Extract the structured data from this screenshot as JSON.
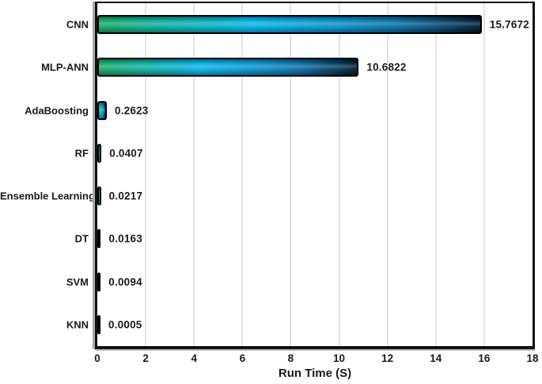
{
  "chart_data": {
    "type": "bar",
    "orientation": "horizontal",
    "title": "",
    "xlabel": "Run Time (S)",
    "ylabel": "",
    "categories": [
      "CNN",
      "MLP-ANN",
      "AdaBoosting",
      "RF",
      "Ensemble Learning",
      "DT",
      "SVM",
      "KNN"
    ],
    "values": [
      15.7672,
      10.6822,
      0.2623,
      0.0407,
      0.0217,
      0.0163,
      0.0094,
      0.0005
    ],
    "value_labels": [
      "15.7672",
      "10.6822",
      "0.2623",
      "0.0407",
      "0.0217",
      "0.0163",
      "0.0094",
      "0.0005"
    ],
    "xlim": [
      0,
      18
    ],
    "xticks": [
      0,
      2,
      4,
      6,
      8,
      10,
      12,
      14,
      16,
      18
    ],
    "grid": "vertical-only",
    "legend": "none",
    "data_labels": "outside-end",
    "colors": {
      "bar_gradient": [
        "#18a968",
        "#06b2e6",
        "#0b8fc9",
        "#0a6ea6",
        "#053c60",
        "#021a2c"
      ],
      "bar_border": "#000000",
      "plot_background": "#ffffff",
      "page_background": "#ffffff",
      "gridline": "#e3e3e3",
      "axis_line": "#131313",
      "axis_shadow": "#a8a8a8",
      "label_text": "#1a1a1a"
    }
  }
}
